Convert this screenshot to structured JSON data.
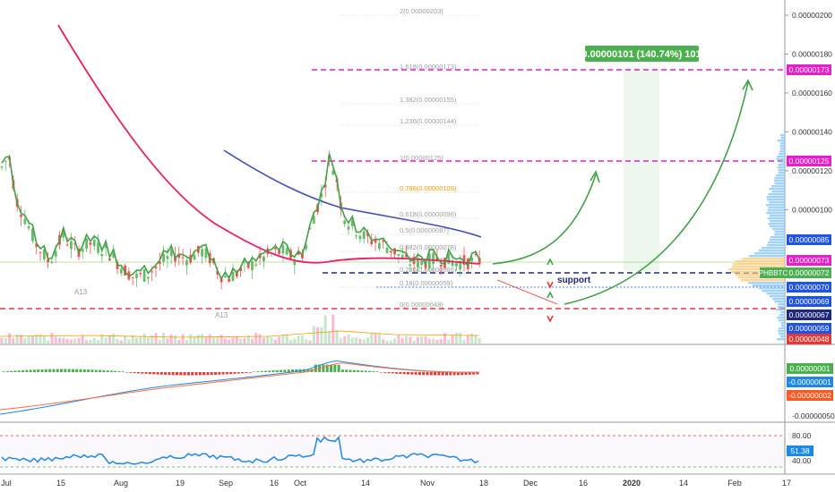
{
  "chart_data": {
    "type": "candlestick",
    "symbol_tag": "PHBBTC",
    "main": {
      "price_ticks": [
        {
          "label": "0.00000200",
          "value": 200
        },
        {
          "label": "0.00000180",
          "value": 180
        },
        {
          "label": "0.00000160",
          "value": 160
        },
        {
          "label": "0.00000140",
          "value": 140
        },
        {
          "label": "0.00000120",
          "value": 120
        },
        {
          "label": "0.00000100",
          "value": 100
        }
      ],
      "ylim": [
        45,
        215
      ],
      "price_badges": [
        {
          "label": "0.00000173",
          "value": 173,
          "color": "#e91ec8"
        },
        {
          "label": "0.00000125",
          "value": 125,
          "color": "#e91ec8"
        },
        {
          "label": "0.00000085",
          "value": 85,
          "color": "#1e53e5"
        },
        {
          "label": "0.00000073",
          "value": 73,
          "color": "#e91ec8"
        },
        {
          "label": "0.00000072",
          "value": 72,
          "color": "#4caf50"
        },
        {
          "label": "0.00000070",
          "value": 70,
          "color": "#1e53e5"
        },
        {
          "label": "0.00000069",
          "value": 69,
          "color": "#1e53e5"
        },
        {
          "label": "0.00000067",
          "value": 67,
          "color": "#1e2a78"
        },
        {
          "label": "0.00000059",
          "value": 59,
          "color": "#1e53e5"
        },
        {
          "label": "0.00000048",
          "value": 48,
          "color": "#e53935"
        }
      ],
      "fib_levels": [
        {
          "label": "2(0.00000203)",
          "value": 203
        },
        {
          "label": "1.618(0.00000173)",
          "value": 173
        },
        {
          "label": "1.382(0.00000155)",
          "value": 155
        },
        {
          "label": "1.236(0.00000144)",
          "value": 144
        },
        {
          "label": "1(0.00000125)",
          "value": 125
        },
        {
          "label": "0.786(0.00000109)",
          "value": 109
        },
        {
          "label": "0.618(0.00000096)",
          "value": 96
        },
        {
          "label": "0.5(0.00000087)",
          "value": 87
        },
        {
          "label": "0.382(0.00000078)",
          "value": 78
        },
        {
          "label": "0.236(0.00000066)",
          "value": 66
        },
        {
          "label": "0.18(0.00000059)",
          "value": 59
        },
        {
          "label": "0(0.00000048)",
          "value": 48
        }
      ],
      "horizontal_lines": [
        {
          "value": 173,
          "color": "#e91ec8",
          "style": "dashed"
        },
        {
          "value": 125,
          "color": "#e91ec8",
          "style": "dashed"
        },
        {
          "value": 67,
          "color": "#1e2a78",
          "style": "dashed"
        },
        {
          "value": 48,
          "color": "#e53935",
          "style": "dashed"
        }
      ],
      "annotations": {
        "support_label": "support",
        "projection_box_label": "0.00000101 (140.74%) 101",
        "pattern_marks": [
          "A13",
          "A13"
        ]
      }
    },
    "time_ticks": [
      "Jul",
      "15",
      "Aug",
      "19",
      "Sep",
      "16",
      "Oct",
      "14",
      "Nov",
      "18",
      "Dec",
      "16",
      "2020",
      "14",
      "Feb",
      "17"
    ],
    "macd": {
      "badges": [
        {
          "label": "0.00000001",
          "color": "#4caf50"
        },
        {
          "label": "-0.00000001",
          "color": "#1e88e5"
        },
        {
          "label": "-0.00000002",
          "color": "#ff5722"
        }
      ],
      "tick": "-0.00000050"
    },
    "rsi": {
      "ticks": [
        "80.00",
        "40.00"
      ],
      "value_badge": "51.38",
      "levels": [
        80,
        40
      ]
    },
    "colors": {
      "up": "#66bb6a",
      "down": "#ef5350",
      "ema_short": "#43a047",
      "ema_mid": "#e91e63",
      "ema_long": "#3f51b5"
    }
  }
}
